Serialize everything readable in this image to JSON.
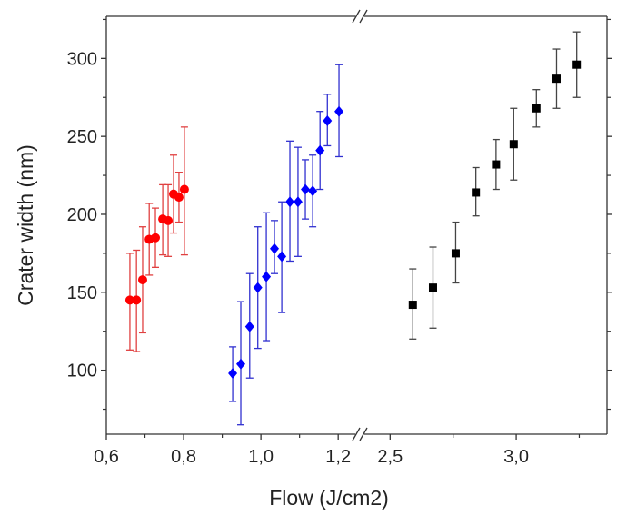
{
  "chart_data": {
    "type": "scatter",
    "title": "",
    "xlabel": "Flow (J/cm2)",
    "ylabel": "Crater width (nm)",
    "ylim": [
      59,
      327
    ],
    "y_ticks": [
      100,
      150,
      200,
      250,
      300
    ],
    "x_axis_broken": true,
    "x_segments": [
      {
        "range": [
          0.6,
          1.256
        ],
        "ticks": [
          0.6,
          0.8,
          1.0,
          1.2
        ],
        "tick_labels": [
          "0,6",
          "0,8",
          "1,0",
          "1,2"
        ],
        "minor_ticks": [
          0.7,
          0.9,
          1.1
        ]
      },
      {
        "range": [
          2.38,
          3.36
        ],
        "ticks": [
          2.5,
          3.0
        ],
        "tick_labels": [
          "2,5",
          "3,0"
        ],
        "minor_ticks": [
          2.75,
          3.25
        ]
      }
    ],
    "grid": false,
    "series": [
      {
        "color": "#ff0000",
        "marker": "circle",
        "segment": 0,
        "x": [
          0.661,
          0.678,
          0.694,
          0.711,
          0.727,
          0.746,
          0.76,
          0.774,
          0.788,
          0.802
        ],
        "y": [
          145,
          145,
          158,
          184,
          185,
          197,
          196,
          213,
          211,
          216
        ],
        "err_low": [
          113,
          112,
          124,
          161,
          166,
          174,
          173,
          188,
          195,
          174
        ],
        "err_high": [
          175,
          177,
          192,
          207,
          204,
          219,
          219,
          238,
          227,
          256
        ]
      },
      {
        "color": "#0000ff",
        "marker": "diamond",
        "segment": 0,
        "x": [
          0.927,
          0.948,
          0.971,
          0.992,
          1.014,
          1.035,
          1.054,
          1.075,
          1.096,
          1.115,
          1.134,
          1.153,
          1.172,
          1.202
        ],
        "y": [
          98,
          104,
          128,
          153,
          160,
          178,
          173,
          208,
          208,
          216,
          215,
          241,
          260,
          266
        ],
        "err_low": [
          80,
          65,
          95,
          114,
          119,
          162,
          137,
          170,
          173,
          197,
          192,
          216,
          244,
          237
        ],
        "err_high": [
          115,
          144,
          162,
          192,
          201,
          196,
          208,
          247,
          243,
          235,
          238,
          266,
          277,
          296
        ]
      },
      {
        "color": "#000000",
        "marker": "square",
        "segment": 1,
        "x": [
          2.59,
          2.67,
          2.76,
          2.84,
          2.92,
          2.99,
          3.08,
          3.16,
          3.24
        ],
        "y": [
          142,
          153,
          175,
          214,
          232,
          245,
          268,
          287,
          296
        ],
        "err_low": [
          120,
          127,
          156,
          199,
          216,
          222,
          256,
          268,
          275
        ],
        "err_high": [
          165,
          179,
          195,
          230,
          248,
          268,
          280,
          306,
          317
        ]
      }
    ]
  }
}
